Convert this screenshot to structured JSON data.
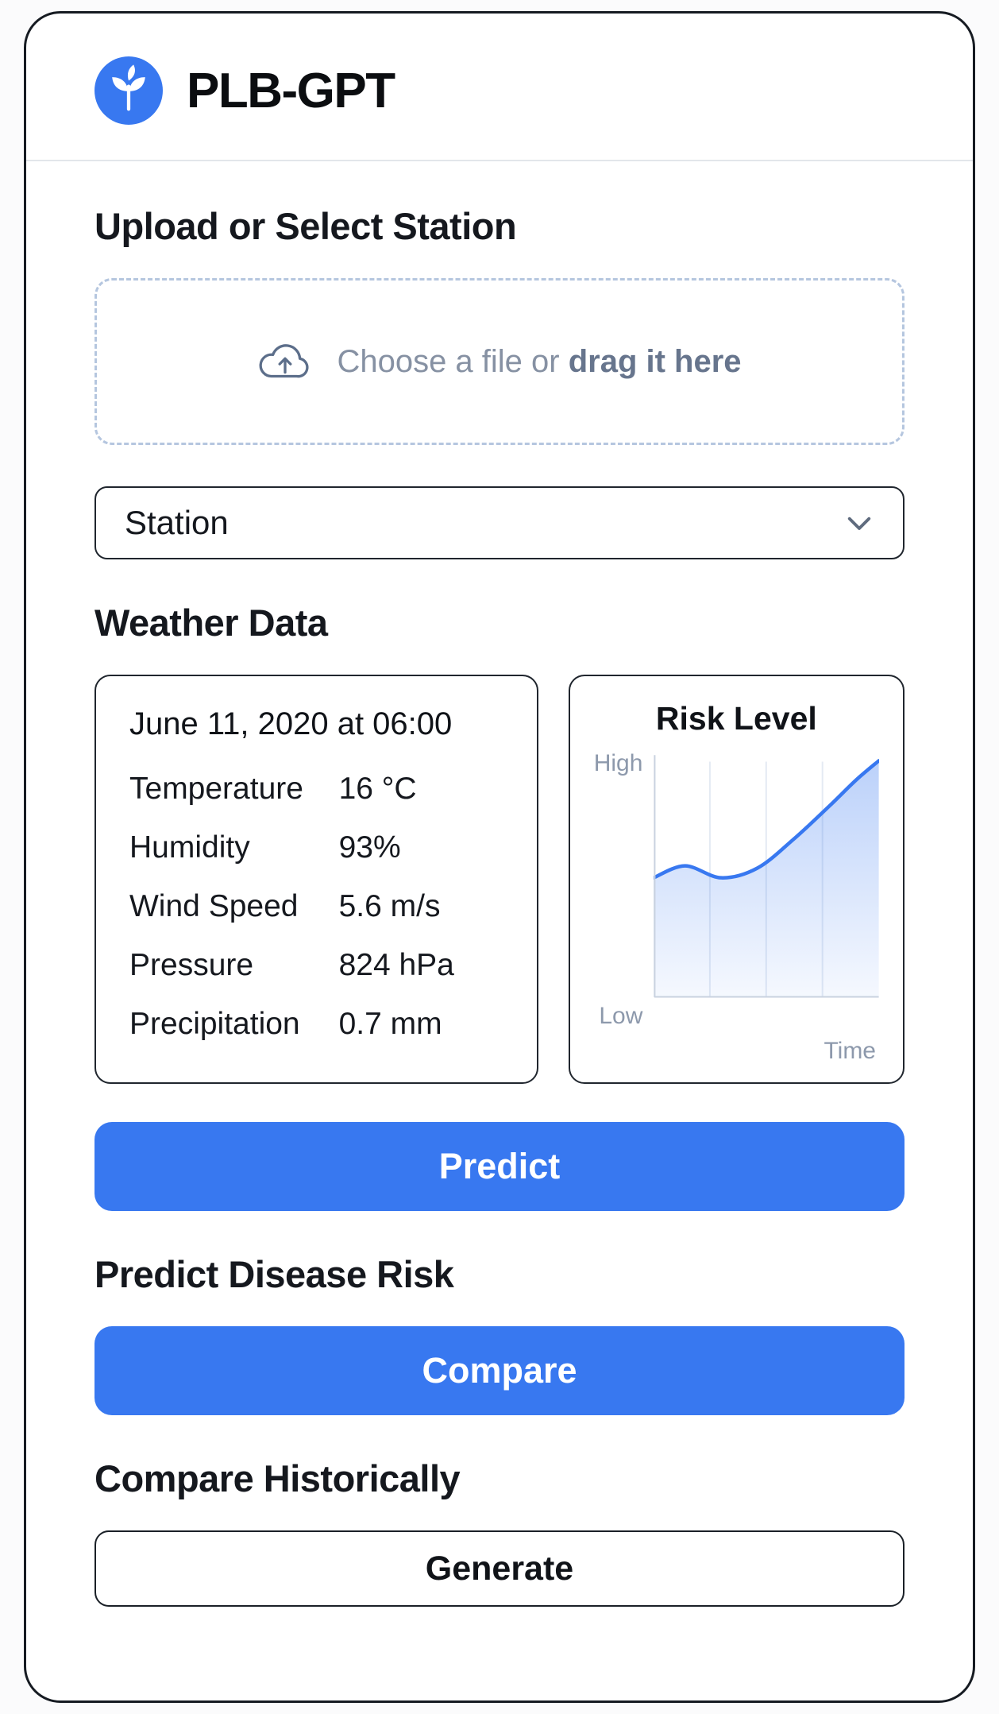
{
  "colors": {
    "accent": "#3878F0"
  },
  "header": {
    "app_title": "PLB-GPT"
  },
  "upload": {
    "heading": "Upload or Select Station",
    "dropzone_text": "Choose a file or ",
    "dropzone_text_bold": "drag it here"
  },
  "station": {
    "selected": "Station"
  },
  "weather": {
    "heading": "Weather Data",
    "timestamp": "June 11, 2020 at 06:00",
    "metrics": [
      {
        "label": "Temperature",
        "value": "16 °C"
      },
      {
        "label": "Humidity",
        "value": "93%"
      },
      {
        "label": "Wind Speed",
        "value": "5.6 m/s"
      },
      {
        "label": "Pressure",
        "value": "824 hPa"
      },
      {
        "label": "Precipitation",
        "value": "0.7 mm"
      }
    ]
  },
  "risk_chart": {
    "type": "line",
    "title": "Risk Level",
    "y_label_top": "High",
    "y_label_bottom": "Low",
    "x_label": "Time",
    "points": [
      [
        0,
        0.5
      ],
      [
        0.14,
        0.55
      ],
      [
        0.3,
        0.5
      ],
      [
        0.46,
        0.54
      ],
      [
        0.62,
        0.66
      ],
      [
        0.78,
        0.8
      ],
      [
        0.9,
        0.91
      ],
      [
        1,
        0.99
      ]
    ]
  },
  "predict": {
    "heading": "Predict Disease Risk",
    "button_label": "Predict"
  },
  "compare": {
    "heading": "Compare Historically",
    "button_label": "Compare"
  },
  "generate": {
    "button_label": "Generate"
  }
}
